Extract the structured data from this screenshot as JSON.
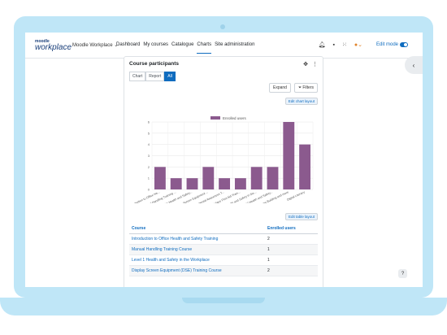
{
  "nav": {
    "logo_top": "moodle",
    "logo_main": "workplace",
    "brand": "Moodle Workplace ⌄",
    "links": [
      "Dashboard",
      "My courses",
      "Catalogue",
      "Charts",
      "Site administration"
    ],
    "edit_mode": "Edit mode"
  },
  "card": {
    "title": "Course participants",
    "tabs": [
      "Chart",
      "Report",
      "All"
    ],
    "expand": "Expand",
    "filters": "Filters",
    "edit_chart_layout": "Edit chart layout",
    "edit_table_layout": "Edit table layout"
  },
  "chart_data": {
    "type": "bar",
    "legend": "Enrolled users",
    "color": "#8b5a8e",
    "categories": [
      "Introduction to Office He...",
      "Manual Handling Training ...",
      "Level 1 Health and Safety...",
      "Display Screen Equipment ...",
      "Environmental Awareness T...",
      "Workplace First Aid Train...",
      "Health and Safety in the...",
      "Level 2 Health and Safety...",
      "Stress Building and more",
      "Digital Literacy"
    ],
    "values": [
      2,
      1,
      1,
      2,
      1,
      1,
      2,
      2,
      6,
      4
    ],
    "ylim": [
      0,
      6
    ],
    "yticks": [
      0,
      1,
      2,
      3,
      4,
      5,
      6
    ]
  },
  "table": {
    "headers": [
      "Course",
      "Enrolled users"
    ],
    "rows": [
      [
        "Introduction to Office Health and Safety Training",
        "2"
      ],
      [
        "Manual Handling Training Course",
        "1"
      ],
      [
        "Level 1 Health and Safety in the Workplace",
        "1"
      ],
      [
        "Display Screen Equipment (DSE) Training Course",
        "2"
      ]
    ]
  }
}
